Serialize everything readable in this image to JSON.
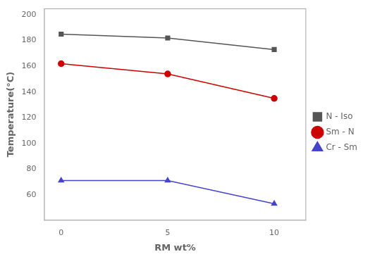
{
  "chart_data": {
    "type": "line",
    "x": [
      0,
      5,
      10
    ],
    "series": [
      {
        "name": "N - Iso",
        "color": "#555555",
        "values": [
          185,
          182,
          173
        ],
        "marker": "square",
        "line_style": "solid"
      },
      {
        "name": "Sm - N",
        "color": "#cc0000",
        "values": [
          162,
          154,
          135
        ],
        "marker": "circle",
        "line_style": "solid"
      },
      {
        "name": "Cr - Sm",
        "color": "#4444cc",
        "values": [
          71,
          71,
          53
        ],
        "marker": "triangle",
        "line_style": "solid"
      }
    ],
    "xlabel": "RM wt%",
    "ylabel": "Temperature(°C)",
    "xlim": [
      -0.8,
      11.5
    ],
    "xticks": [
      0,
      5,
      10
    ],
    "ylim": [
      40,
      205
    ],
    "yticks": [
      60,
      80,
      100,
      120,
      140,
      160,
      180,
      200
    ],
    "grid": false,
    "legend": "right"
  }
}
